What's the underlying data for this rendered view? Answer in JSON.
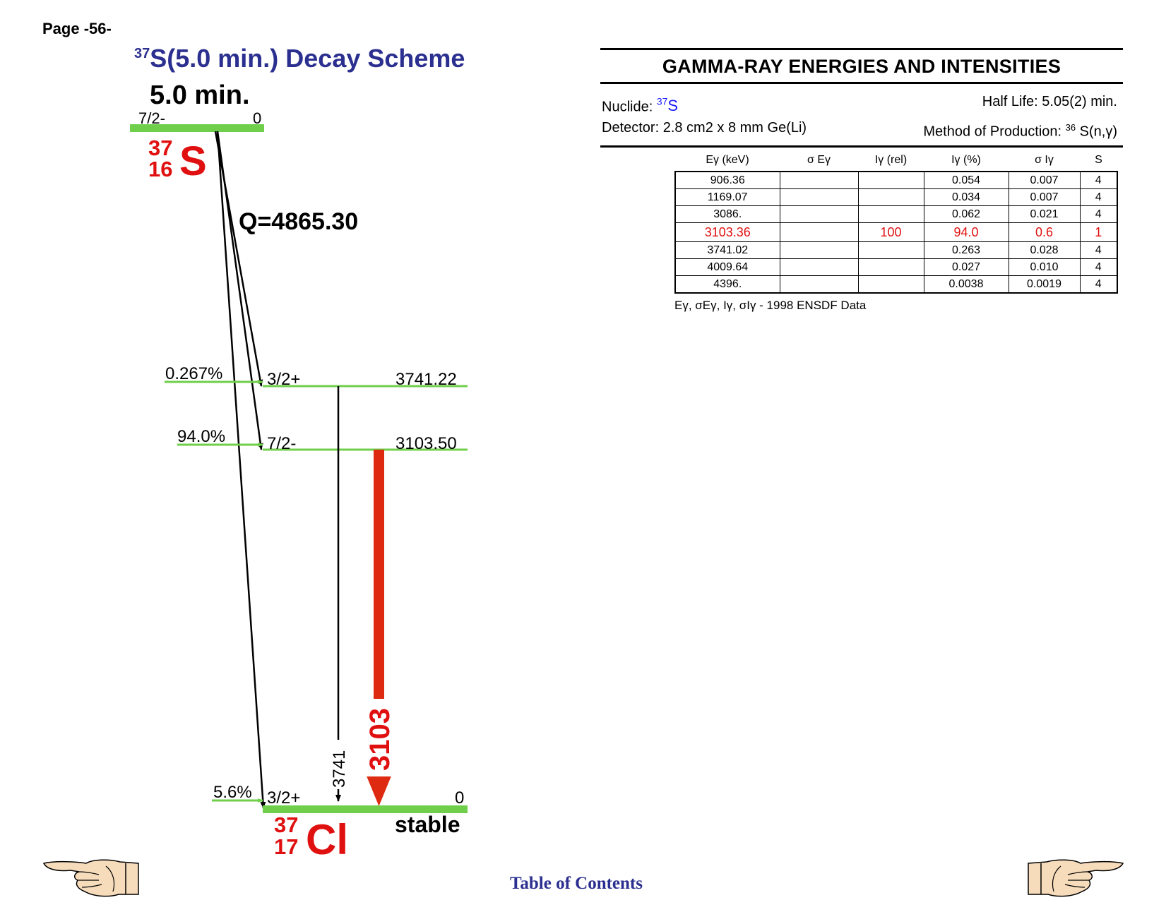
{
  "page": {
    "label": "Page -56-"
  },
  "scheme": {
    "title_sup": "37",
    "title_main": "S(5.0 min.) Decay Scheme",
    "parent": {
      "halflife": "5.0 min.",
      "spin": "7/2-",
      "energy": "0",
      "mass_number": "37",
      "atomic_number": "16",
      "symbol": "S"
    },
    "q_value": "Q=4865.30",
    "levels": [
      {
        "spin": "3/2+",
        "energy": "3741.22",
        "beta_branch": "0.267%"
      },
      {
        "spin": "7/2-",
        "energy": "3103.50",
        "beta_branch": "94.0%"
      },
      {
        "spin": "3/2+",
        "energy": "0",
        "beta_branch": "5.6%"
      }
    ],
    "gammas": [
      {
        "label": "3741",
        "from": "3741.22",
        "to": "0",
        "color": "#000000"
      },
      {
        "label": "3103",
        "from": "3103.50",
        "to": "0",
        "color": "#dd2a10"
      }
    ],
    "daughter": {
      "mass_number": "37",
      "atomic_number": "17",
      "symbol": "Cl",
      "status": "stable"
    },
    "colors": {
      "level": "#6fcf4a",
      "strong_gamma": "#dd2a10",
      "title": "#2b2f8f",
      "nuclide": "#e01010"
    }
  },
  "gamma_panel": {
    "title": "GAMMA-RAY ENERGIES AND INTENSITIES",
    "nuclide_label": "Nuclide: ",
    "nuclide_sup": "37",
    "nuclide_sym": "S",
    "half_life": "Half Life: 5.05(2) min.",
    "detector": "Detector: 2.8 cm2 x 8 mm Ge(Li)",
    "production_prefix": "Method of Production: ",
    "production_sup": "36",
    "production_rest": " S(n,γ)",
    "columns": [
      "Eγ (keV)",
      "σ Eγ",
      "Iγ (rel)",
      "Iγ (%)",
      "σ Iγ",
      "S"
    ],
    "rows": [
      [
        "906.36",
        "",
        "",
        "0.054",
        "0.007",
        "4"
      ],
      [
        "1169.07",
        "",
        "",
        "0.034",
        "0.007",
        "4"
      ],
      [
        "3086.",
        "",
        "",
        "0.062",
        "0.021",
        "4"
      ],
      [
        "3103.36",
        "",
        "100",
        "94.0",
        "0.6",
        "1"
      ],
      [
        "3741.02",
        "",
        "",
        "0.263",
        "0.028",
        "4"
      ],
      [
        "4009.64",
        "",
        "",
        "0.027",
        "0.010",
        "4"
      ],
      [
        "4396.",
        "",
        "",
        "0.0038",
        "0.0019",
        "4"
      ]
    ],
    "highlight_row": 3,
    "note": "Eγ, σEγ, Iγ, σIγ - 1998 ENSDF Data"
  },
  "footer": {
    "toc": "Table of Contents",
    "prev_icon": "pointing-hand-left-icon",
    "next_icon": "pointing-hand-right-icon"
  }
}
